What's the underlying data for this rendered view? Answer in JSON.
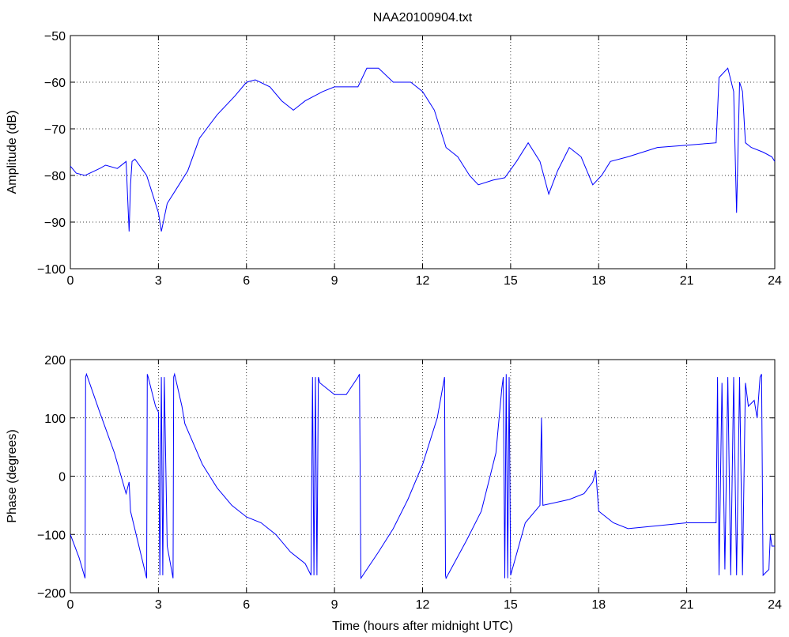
{
  "chart_data": [
    {
      "type": "line",
      "title": "NAA20100904.txt",
      "xlabel": "",
      "ylabel": "Amplitude (dB)",
      "xlim": [
        0,
        24
      ],
      "ylim": [
        -100,
        -50
      ],
      "xticks": [
        "0",
        "3",
        "6",
        "9",
        "12",
        "15",
        "18",
        "21",
        "24"
      ],
      "yticks": [
        "-50",
        "-60",
        "-70",
        "-80",
        "-90",
        "-100"
      ],
      "grid": true,
      "line_color": "#0000ff",
      "x": [
        0,
        0.2,
        0.5,
        1.0,
        1.2,
        1.6,
        1.9,
        2.0,
        2.05,
        2.1,
        2.2,
        2.6,
        3.0,
        3.1,
        3.3,
        3.6,
        4.0,
        4.4,
        5.0,
        5.6,
        6.0,
        6.3,
        6.8,
        7.2,
        7.6,
        8.0,
        8.6,
        9.0,
        9.4,
        9.8,
        10.1,
        10.5,
        11.0,
        11.6,
        12.0,
        12.4,
        12.8,
        13.2,
        13.6,
        13.9,
        14.4,
        14.8,
        15.2,
        15.6,
        16.0,
        16.3,
        16.6,
        17.0,
        17.4,
        17.8,
        18.1,
        18.4,
        19.0,
        20.0,
        21.0,
        22.0,
        22.1,
        22.4,
        22.6,
        22.7,
        22.8,
        22.9,
        23.0,
        23.2,
        23.6,
        23.9,
        24.0
      ],
      "y": [
        -78,
        -79.5,
        -80,
        -78.5,
        -77.8,
        -78.5,
        -77,
        -92,
        -82,
        -77,
        -76.5,
        -80,
        -88,
        -92,
        -86,
        -83,
        -79,
        -72,
        -67,
        -63,
        -60,
        -59.5,
        -61,
        -64,
        -66,
        -64,
        -62,
        -61,
        -61,
        -61,
        -57,
        -57,
        -60,
        -60,
        -62,
        -66,
        -74,
        -76,
        -80,
        -82,
        -81,
        -80.5,
        -77,
        -73,
        -77,
        -84,
        -79,
        -74,
        -76,
        -82,
        -80,
        -77,
        -76,
        -74,
        -73.5,
        -73,
        -59,
        -57,
        -62,
        -88,
        -60,
        -62,
        -73,
        -74,
        -75,
        -76,
        -77
      ]
    },
    {
      "type": "line",
      "title": "",
      "xlabel": "Time (hours after midnight UTC)",
      "ylabel": "Phase (degrees)",
      "xlim": [
        0,
        24
      ],
      "ylim": [
        -200,
        200
      ],
      "xticks": [
        "0",
        "3",
        "6",
        "9",
        "12",
        "15",
        "18",
        "21",
        "24"
      ],
      "yticks": [
        "200",
        "100",
        "0",
        "-100",
        "-200"
      ],
      "grid": true,
      "line_color": "#0000ff",
      "x": [
        0,
        0.3,
        0.5,
        0.52,
        0.55,
        1.0,
        1.5,
        1.9,
        2.0,
        2.05,
        2.6,
        2.62,
        2.65,
        2.9,
        3.0,
        3.05,
        3.1,
        3.15,
        3.2,
        3.3,
        3.5,
        3.52,
        3.55,
        3.8,
        3.9,
        4.5,
        5.0,
        5.5,
        6.0,
        6.5,
        7.0,
        7.5,
        8.0,
        8.2,
        8.25,
        8.3,
        8.35,
        8.4,
        8.45,
        8.5,
        9.0,
        9.4,
        9.8,
        9.85,
        9.9,
        10.5,
        11.0,
        11.5,
        12.0,
        12.5,
        12.75,
        12.78,
        12.8,
        13.5,
        14.0,
        14.5,
        14.7,
        14.75,
        14.8,
        14.85,
        14.9,
        14.95,
        15.0,
        15.5,
        16.0,
        16.05,
        16.1,
        17.0,
        17.5,
        17.8,
        17.9,
        18.0,
        18.5,
        19.0,
        20.0,
        21.0,
        22.0,
        22.05,
        22.1,
        22.2,
        22.3,
        22.4,
        22.5,
        22.6,
        22.7,
        22.8,
        22.9,
        23.0,
        23.1,
        23.3,
        23.4,
        23.5,
        23.55,
        23.6,
        23.8,
        23.85,
        23.9,
        24.0
      ],
      "y": [
        -100,
        -140,
        -175,
        170,
        175,
        110,
        40,
        -30,
        -10,
        -60,
        -175,
        175,
        170,
        120,
        110,
        -170,
        170,
        -170,
        170,
        -120,
        -175,
        170,
        175,
        120,
        90,
        20,
        -20,
        -50,
        -70,
        -80,
        -100,
        -130,
        -150,
        -170,
        170,
        -170,
        170,
        -170,
        170,
        160,
        140,
        140,
        170,
        175,
        -175,
        -130,
        -90,
        -40,
        20,
        100,
        170,
        -170,
        -175,
        -110,
        -60,
        40,
        150,
        170,
        -175,
        175,
        -175,
        170,
        -170,
        -80,
        -50,
        100,
        -50,
        -40,
        -30,
        -10,
        10,
        -60,
        -80,
        -90,
        -85,
        -80,
        -80,
        170,
        -170,
        160,
        -160,
        170,
        -170,
        170,
        -170,
        170,
        -170,
        160,
        120,
        130,
        100,
        170,
        175,
        -170,
        -160,
        -100,
        -120,
        -120
      ]
    }
  ]
}
